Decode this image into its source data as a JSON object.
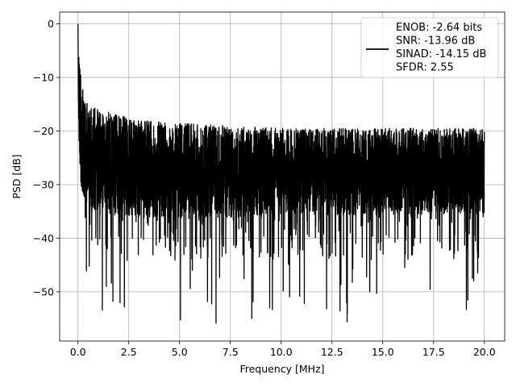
{
  "chart_data": {
    "type": "line",
    "title": "",
    "xlabel": "Frequency [MHz]",
    "ylabel": "PSD [dB]",
    "xlim": [
      -0.9,
      21.0
    ],
    "ylim": [
      -59.2,
      2.2
    ],
    "xticks": [
      0.0,
      2.5,
      5.0,
      7.5,
      10.0,
      12.5,
      15.0,
      17.5,
      20.0
    ],
    "xtick_labels": [
      "0.0",
      "2.5",
      "5.0",
      "7.5",
      "10.0",
      "12.5",
      "15.0",
      "17.5",
      "20.0"
    ],
    "yticks": [
      0,
      -10,
      -20,
      -30,
      -40,
      -50
    ],
    "ytick_labels": [
      "0",
      "−10",
      "−20",
      "−30",
      "−40",
      "−50"
    ],
    "grid": true,
    "legend_position": "top-right",
    "series": [
      {
        "name": "ENOB: -2.64 bits\nSNR: -13.96 dB\nSINAD: -14.15 dB\nSFDR: 2.55",
        "color": "#000000",
        "description_points": {
          "x": [
            0.0,
            0.02,
            0.05,
            0.1,
            0.15,
            0.2,
            0.3,
            0.5,
            1.0,
            2.0,
            3.0,
            5.0,
            7.5,
            10.0,
            12.5,
            15.0,
            17.5,
            20.0
          ],
          "peak_envelope": [
            0.0,
            -3.0,
            -6.0,
            -7.0,
            -9.0,
            -11.0,
            -14.0,
            -15.0,
            -16.0,
            -17.0,
            -18.0,
            -18.5,
            -19.0,
            -19.5,
            -19.5,
            -19.5,
            -19.5,
            -19.5
          ],
          "median": [
            -2.0,
            -10.0,
            -15.0,
            -18.0,
            -20.0,
            -22.0,
            -24.0,
            -25.0,
            -26.0,
            -27.0,
            -27.5,
            -28.0,
            -28.0,
            -28.0,
            -28.0,
            -28.0,
            -28.0,
            -28.0
          ]
        },
        "legend_lines": [
          "ENOB: -2.64 bits",
          "SNR: -13.96 dB",
          "SINAD: -14.15 dB",
          "SFDR: 2.55"
        ]
      }
    ]
  }
}
